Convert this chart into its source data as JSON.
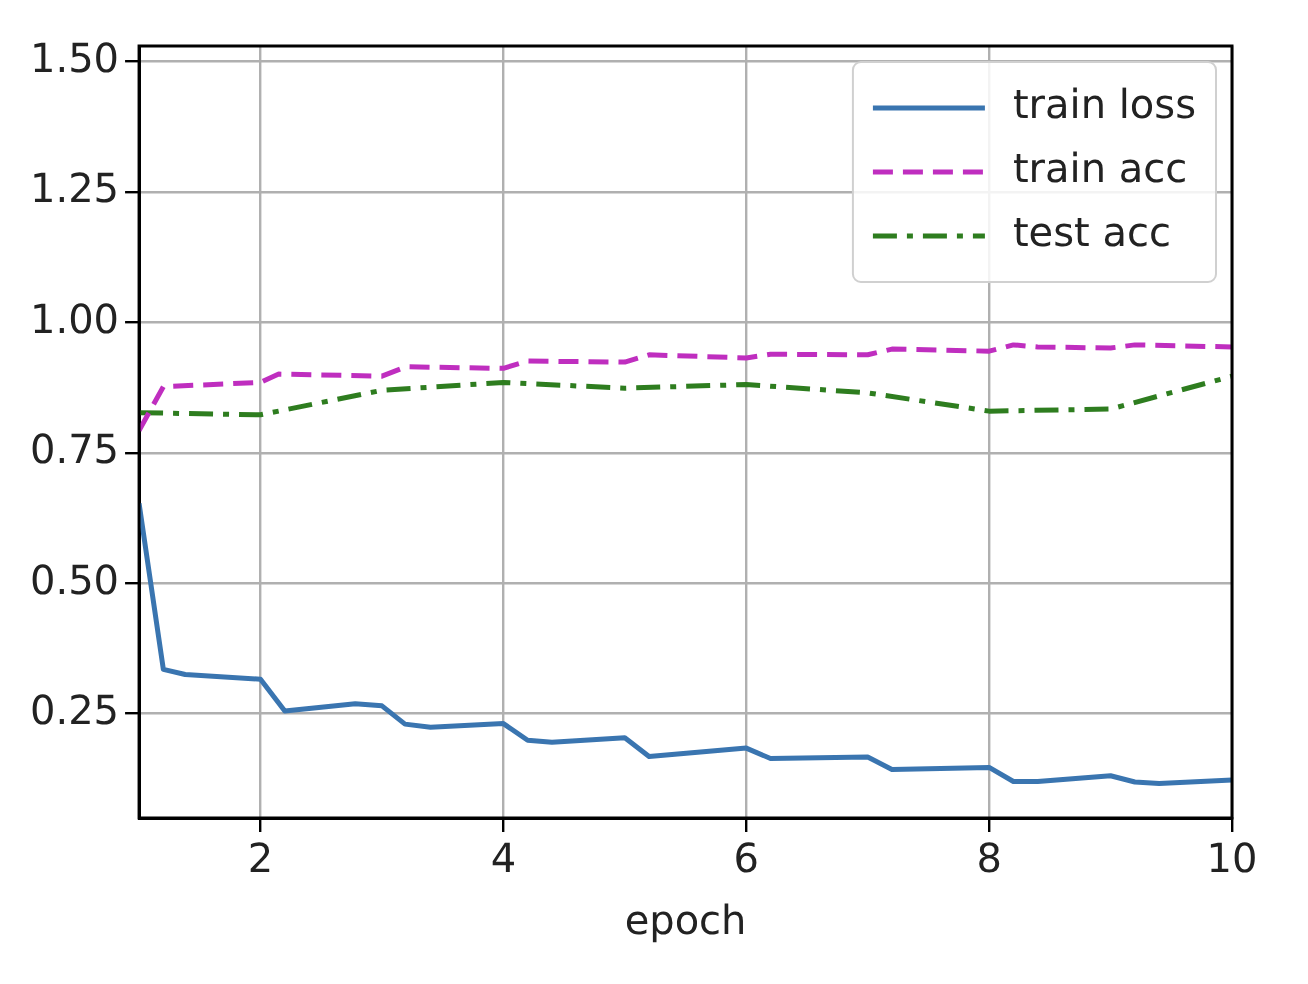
{
  "chart_data": {
    "type": "line",
    "xlabel": "epoch",
    "xlim": [
      1,
      10
    ],
    "xticks": [
      2,
      4,
      6,
      8,
      10
    ],
    "ylim": [
      0.05,
      1.53
    ],
    "yticks": [
      0.25,
      {
        "value": 0.5,
        "label": "0.50"
      },
      0.75,
      {
        "value": 1,
        "label": "1.00"
      },
      1.25,
      {
        "value": 1.5,
        "label": "1.50"
      }
    ],
    "grid": true,
    "legend": "top right",
    "marker": "none",
    "series": [
      {
        "name": "train loss",
        "color": "#3a75b0",
        "line_style": "solid",
        "x": [
          1,
          1.2,
          1.38,
          2,
          2.2,
          2.78,
          3,
          3.19,
          3.4,
          4,
          4.2,
          4.4,
          5,
          5.2,
          6,
          6.2,
          7,
          7.2,
          8,
          8.2,
          8.4,
          9,
          9.2,
          9.4,
          10
        ],
        "values": [
          0.653,
          0.335,
          0.325,
          0.316,
          0.255,
          0.269,
          0.265,
          0.23,
          0.224,
          0.231,
          0.199,
          0.195,
          0.204,
          0.168,
          0.184,
          0.164,
          0.167,
          0.143,
          0.147,
          0.12,
          0.12,
          0.131,
          0.119,
          0.116,
          0.123
        ]
      },
      {
        "name": "train acc",
        "color": "#bf2ebf",
        "line_style": "dashed",
        "x": [
          1,
          1.2,
          2,
          2.15,
          3,
          3.2,
          4,
          4.2,
          5,
          5.2,
          6,
          6.2,
          7,
          7.2,
          8,
          8.2,
          8.4,
          9,
          9.2,
          10
        ],
        "values": [
          0.793,
          0.877,
          0.885,
          0.901,
          0.897,
          0.915,
          0.912,
          0.926,
          0.924,
          0.938,
          0.932,
          0.939,
          0.938,
          0.949,
          0.945,
          0.957,
          0.953,
          0.951,
          0.957,
          0.953
        ]
      },
      {
        "name": "test acc",
        "color": "#2e7d1f",
        "line_style": "dashdot",
        "x": [
          1,
          2,
          3,
          4,
          5,
          6,
          7,
          8,
          9,
          10
        ],
        "values": [
          0.827,
          0.823,
          0.87,
          0.885,
          0.874,
          0.881,
          0.865,
          0.83,
          0.834,
          0.897
        ]
      }
    ]
  }
}
